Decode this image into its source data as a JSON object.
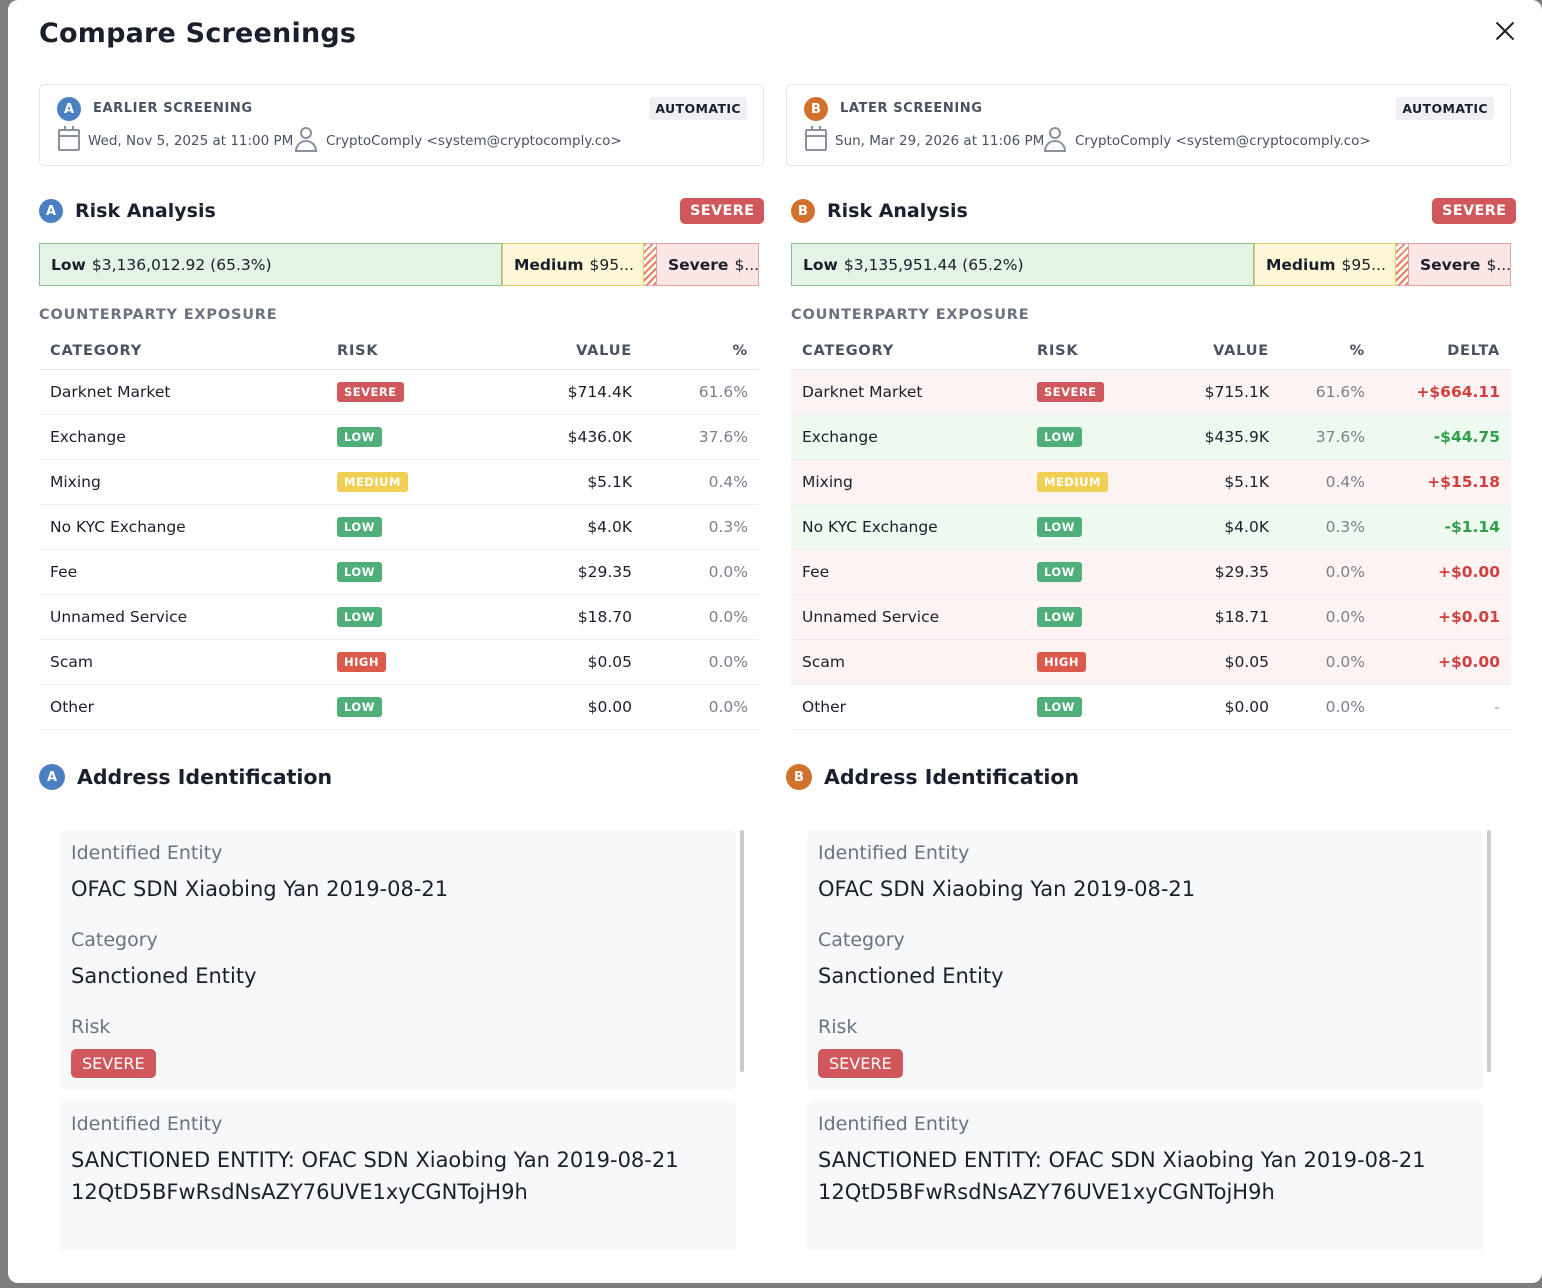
{
  "modal": {
    "title": "Compare Screenings"
  },
  "screenings": {
    "a": {
      "letter": "A",
      "label": "EARLIER SCREENING",
      "mode": "AUTOMATIC",
      "date": "Wed, Nov 5, 2025 at 11:00 PM",
      "user": "CryptoComply <system@cryptocomply.co>"
    },
    "b": {
      "letter": "B",
      "label": "LATER SCREENING",
      "mode": "AUTOMATIC",
      "date": "Sun, Mar 29, 2026 at 11:06 PM",
      "user": "CryptoComply <system@cryptocomply.co>"
    }
  },
  "risk": {
    "title": "Risk Analysis",
    "a": {
      "level": "SEVERE",
      "low_label": "Low",
      "low_value": "$3,136,012.92 (65.3%)",
      "low_share": 0.653,
      "med_label": "Medium",
      "med_value": "$95...",
      "sev_label": "Severe",
      "sev_value": "$..."
    },
    "b": {
      "level": "SEVERE",
      "low_label": "Low",
      "low_value": "$3,135,951.44 (65.2%)",
      "low_share": 0.652,
      "med_label": "Medium",
      "med_value": "$95...",
      "sev_label": "Severe",
      "sev_value": "$..."
    }
  },
  "exposure": {
    "title": "COUNTERPARTY EXPOSURE",
    "headers": {
      "category": "CATEGORY",
      "risk": "RISK",
      "value": "VALUE",
      "pct": "%",
      "delta": "DELTA"
    },
    "a_rows": [
      {
        "category": "Darknet Market",
        "risk": "SEVERE",
        "value": "$714.4K",
        "pct": "61.6%"
      },
      {
        "category": "Exchange",
        "risk": "LOW",
        "value": "$436.0K",
        "pct": "37.6%"
      },
      {
        "category": "Mixing",
        "risk": "MEDIUM",
        "value": "$5.1K",
        "pct": "0.4%"
      },
      {
        "category": "No KYC Exchange",
        "risk": "LOW",
        "value": "$4.0K",
        "pct": "0.3%"
      },
      {
        "category": "Fee",
        "risk": "LOW",
        "value": "$29.35",
        "pct": "0.0%"
      },
      {
        "category": "Unnamed Service",
        "risk": "LOW",
        "value": "$18.70",
        "pct": "0.0%"
      },
      {
        "category": "Scam",
        "risk": "HIGH",
        "value": "$0.05",
        "pct": "0.0%"
      },
      {
        "category": "Other",
        "risk": "LOW",
        "value": "$0.00",
        "pct": "0.0%"
      }
    ],
    "b_rows": [
      {
        "category": "Darknet Market",
        "risk": "SEVERE",
        "value": "$715.1K",
        "pct": "61.6%",
        "delta": "+$664.11",
        "trend": "neg"
      },
      {
        "category": "Exchange",
        "risk": "LOW",
        "value": "$435.9K",
        "pct": "37.6%",
        "delta": "-$44.75",
        "trend": "pos"
      },
      {
        "category": "Mixing",
        "risk": "MEDIUM",
        "value": "$5.1K",
        "pct": "0.4%",
        "delta": "+$15.18",
        "trend": "neg"
      },
      {
        "category": "No KYC Exchange",
        "risk": "LOW",
        "value": "$4.0K",
        "pct": "0.3%",
        "delta": "-$1.14",
        "trend": "pos"
      },
      {
        "category": "Fee",
        "risk": "LOW",
        "value": "$29.35",
        "pct": "0.0%",
        "delta": "+$0.00",
        "trend": "neg"
      },
      {
        "category": "Unnamed Service",
        "risk": "LOW",
        "value": "$18.71",
        "pct": "0.0%",
        "delta": "+$0.01",
        "trend": "neg"
      },
      {
        "category": "Scam",
        "risk": "HIGH",
        "value": "$0.05",
        "pct": "0.0%",
        "delta": "+$0.00",
        "trend": "neg"
      },
      {
        "category": "Other",
        "risk": "LOW",
        "value": "$0.00",
        "pct": "0.0%",
        "delta": "-",
        "trend": "none"
      }
    ]
  },
  "address": {
    "title": "Address Identification",
    "a": [
      {
        "entity_label": "Identified Entity",
        "entity": "OFAC SDN Xiaobing Yan 2019-08-21",
        "category_label": "Category",
        "category": "Sanctioned Entity",
        "risk_label": "Risk",
        "risk": "SEVERE"
      },
      {
        "entity_label": "Identified Entity",
        "entity": "SANCTIONED ENTITY: OFAC SDN Xiaobing Yan 2019-08-21 12QtD5BFwRsdNsAZY76UVE1xyCGNTojH9h"
      }
    ],
    "b": [
      {
        "entity_label": "Identified Entity",
        "entity": "OFAC SDN Xiaobing Yan 2019-08-21",
        "category_label": "Category",
        "category": "Sanctioned Entity",
        "risk_label": "Risk",
        "risk": "SEVERE"
      },
      {
        "entity_label": "Identified Entity",
        "entity": "SANCTIONED ENTITY: OFAC SDN Xiaobing Yan 2019-08-21 12QtD5BFwRsdNsAZY76UVE1xyCGNTojH9h"
      }
    ]
  },
  "colors": {
    "severe": "#d0585c",
    "low": "#4fae7a",
    "medium": "#f1cf55",
    "high": "#dc5a4b",
    "a_accent": "#4a7fc1",
    "b_accent": "#d2702e"
  }
}
